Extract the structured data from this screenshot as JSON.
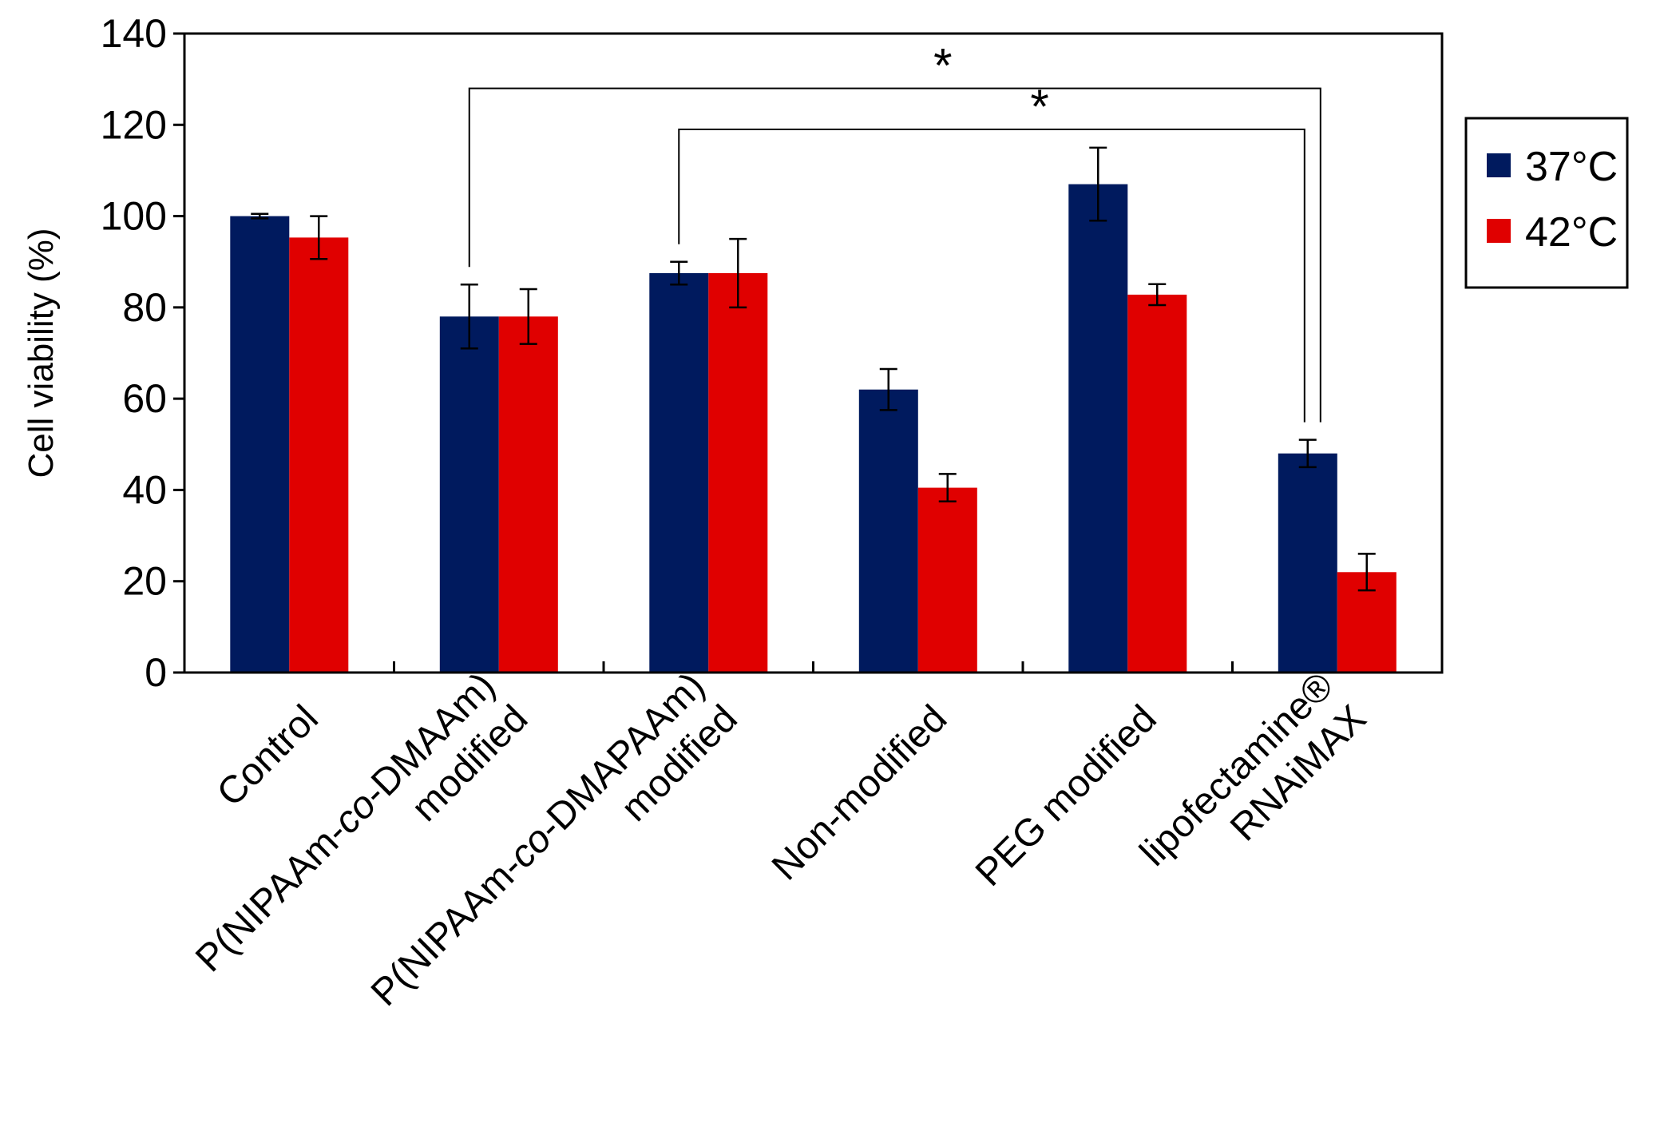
{
  "chart_data": {
    "type": "bar",
    "title": "",
    "xlabel": "",
    "ylabel": "Cell viability (%)",
    "ylim": [
      0,
      140
    ],
    "yticks": [
      0,
      20,
      40,
      60,
      80,
      100,
      120,
      140
    ],
    "grid": false,
    "legend_position": "right",
    "categories": [
      {
        "lines": [
          "Control"
        ]
      },
      {
        "lines": [
          "P(NIPAAm-co-DMAAm)",
          "modified"
        ]
      },
      {
        "lines": [
          "P(NIPAAm-co-DMAPAAm)",
          "modified"
        ]
      },
      {
        "lines": [
          "Non-modified"
        ]
      },
      {
        "lines": [
          "PEG modified"
        ]
      },
      {
        "lines": [
          "lipofectamine®",
          "RNAiMAX"
        ]
      }
    ],
    "series": [
      {
        "name": "37°C",
        "color": "#001a5e",
        "values": [
          100,
          78,
          87.5,
          62,
          107,
          48
        ],
        "errors": [
          0.5,
          7,
          2.5,
          4.5,
          8,
          3
        ]
      },
      {
        "name": "42°C",
        "color": "#e00000",
        "values": [
          95.3,
          78,
          87.5,
          40.5,
          82.8,
          22
        ],
        "errors": [
          4.7,
          6,
          7.5,
          3,
          2.3,
          4
        ]
      }
    ],
    "significance": [
      {
        "from_category": 1,
        "to_category": 5,
        "bracket_y": 128,
        "label": "*"
      },
      {
        "from_category": 2,
        "to_category": 5,
        "bracket_y": 119,
        "label": "*"
      }
    ]
  }
}
